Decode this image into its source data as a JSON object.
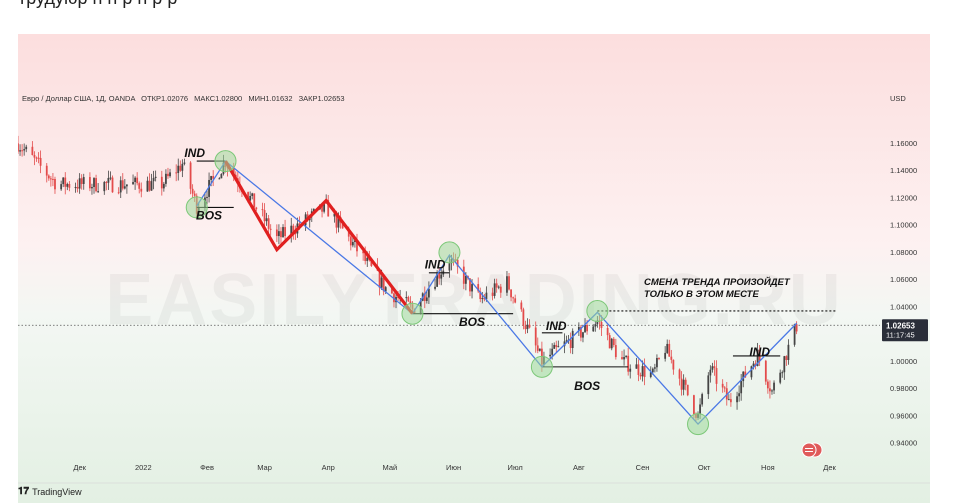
{
  "top_text": "трудуюр  н  н р н  р  р",
  "header": {
    "symbol": "Евро / Доллар США, 1Д, OANDA",
    "open": "ОТКР1.02076",
    "high": "МАКС1.02800",
    "low": "МИН1.01632",
    "close": "ЗАКР1.02653",
    "currency": "USD"
  },
  "price": {
    "value": "1.02653",
    "time": "11:17:45"
  },
  "watermark": "EASILYTRADING.RU",
  "footer": {
    "logo": "TradingView",
    "logo_icon": "tradingview-logo-icon"
  },
  "annotation": {
    "line1": "СМЕНА ТРЕНДА ПРОИЗОЙДЕТ",
    "line2": "ТОЛЬКО В ЭТОМ МЕСТЕ"
  },
  "colors": {
    "zigzag_blue": "#4a78e6",
    "zigzag_red": "#e02020",
    "up": "#444444",
    "down": "#e34b4b",
    "circle": "#9fd89b",
    "badge": "#e05a5a"
  },
  "chart_data": {
    "type": "candlestick",
    "y_ticks": [
      "1.16000",
      "1.14000",
      "1.12000",
      "1.10000",
      "1.08000",
      "1.06000",
      "1.04000",
      "1.02000",
      "1.00000",
      "0.98000",
      "0.96000",
      "0.94000"
    ],
    "ylim": [
      0.935,
      1.172
    ],
    "x_ticks": [
      "Дек",
      "2022",
      "Фев",
      "Мар",
      "Апр",
      "Май",
      "Июн",
      "Июл",
      "Авг",
      "Сен",
      "Окт",
      "Ноя",
      "Дек"
    ],
    "last_price": 1.02653,
    "markup_labels": [
      {
        "text": "IND",
        "date": "2022-01-26",
        "price": 1.15
      },
      {
        "text": "BOS",
        "date": "2022-02-02",
        "price": 1.104
      },
      {
        "text": "IND",
        "date": "2022-05-23",
        "price": 1.068
      },
      {
        "text": "BOS",
        "date": "2022-06-10",
        "price": 1.026
      },
      {
        "text": "IND",
        "date": "2022-07-21",
        "price": 1.023
      },
      {
        "text": "BOS",
        "date": "2022-08-05",
        "price": 0.979
      },
      {
        "text": "IND",
        "date": "2022-10-28",
        "price": 1.004
      }
    ],
    "blue_zigzag": [
      {
        "date": "2022-01-27",
        "price": 1.114
      },
      {
        "date": "2022-02-10",
        "price": 1.147
      },
      {
        "date": "2022-05-12",
        "price": 1.035
      },
      {
        "date": "2022-05-30",
        "price": 1.078
      },
      {
        "date": "2022-07-14",
        "price": 0.996
      },
      {
        "date": "2022-08-10",
        "price": 1.036
      },
      {
        "date": "2022-09-28",
        "price": 0.954
      },
      {
        "date": "2022-11-15",
        "price": 1.028
      }
    ],
    "red_zigzag": [
      {
        "date": "2022-02-10",
        "price": 1.147
      },
      {
        "date": "2022-03-07",
        "price": 1.082
      },
      {
        "date": "2022-03-31",
        "price": 1.118
      },
      {
        "date": "2022-05-12",
        "price": 1.035
      }
    ],
    "circles": [
      {
        "date": "2022-02-10",
        "price": 1.147
      },
      {
        "date": "2022-01-27",
        "price": 1.113
      },
      {
        "date": "2022-05-12",
        "price": 1.035
      },
      {
        "date": "2022-05-30",
        "price": 1.08
      },
      {
        "date": "2022-07-14",
        "price": 0.996
      },
      {
        "date": "2022-08-10",
        "price": 1.037
      },
      {
        "date": "2022-09-28",
        "price": 0.954
      }
    ],
    "horizontal_lines": [
      {
        "from": "2022-01-27",
        "to": "2022-02-10",
        "price": 1.147
      },
      {
        "from": "2022-01-27",
        "to": "2022-02-14",
        "price": 1.113
      },
      {
        "from": "2022-05-12",
        "to": "2022-06-30",
        "price": 1.035
      },
      {
        "from": "2022-05-20",
        "to": "2022-05-30",
        "price": 1.065
      },
      {
        "from": "2022-07-14",
        "to": "2022-08-25",
        "price": 0.996
      },
      {
        "from": "2022-07-14",
        "to": "2022-07-24",
        "price": 1.021
      },
      {
        "from": "2022-10-15",
        "to": "2022-11-07",
        "price": 1.004
      }
    ],
    "dotted_lines": [
      {
        "from": "2022-08-10",
        "to": "2022-12-04",
        "price": 1.037
      }
    ],
    "ohlc_anchors": [
      [
        "2021-11-01",
        1.16
      ],
      [
        "2021-11-20",
        1.13
      ],
      [
        "2021-12-15",
        1.13
      ],
      [
        "2022-01-10",
        1.13
      ],
      [
        "2022-01-20",
        1.145
      ],
      [
        "2022-01-27",
        1.114
      ],
      [
        "2022-02-10",
        1.147
      ],
      [
        "2022-03-07",
        1.09
      ],
      [
        "2022-03-31",
        1.113
      ],
      [
        "2022-04-28",
        1.055
      ],
      [
        "2022-05-12",
        1.038
      ],
      [
        "2022-05-30",
        1.075
      ],
      [
        "2022-06-14",
        1.045
      ],
      [
        "2022-06-27",
        1.058
      ],
      [
        "2022-07-14",
        1.0
      ],
      [
        "2022-08-10",
        1.03
      ],
      [
        "2022-08-22",
        1.0
      ],
      [
        "2022-09-06",
        0.99
      ],
      [
        "2022-09-12",
        1.01
      ],
      [
        "2022-09-28",
        0.96
      ],
      [
        "2022-10-04",
        0.995
      ],
      [
        "2022-10-13",
        0.97
      ],
      [
        "2022-10-27",
        1.005
      ],
      [
        "2022-11-03",
        0.978
      ],
      [
        "2022-11-15",
        1.026
      ]
    ]
  }
}
